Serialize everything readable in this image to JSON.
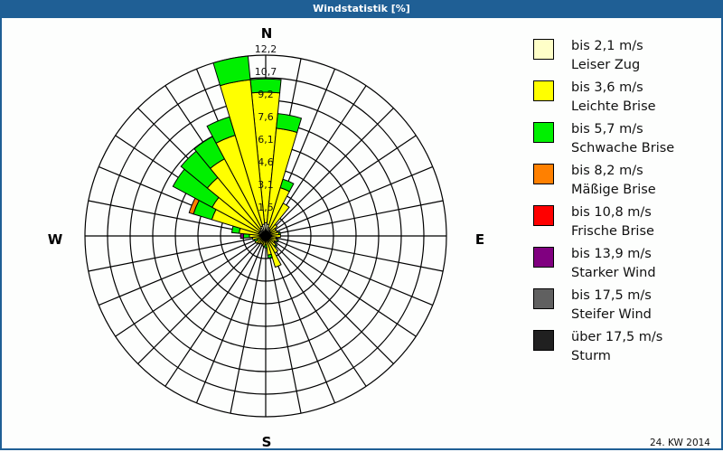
{
  "window": {
    "title": "Windstatistik [%]"
  },
  "compass": {
    "north": "N",
    "east": "E",
    "south": "S",
    "west": "W"
  },
  "footer": {
    "week_label": "24. KW 2014"
  },
  "legend": [
    {
      "speed": "bis 2,1 m/s",
      "name": "Leiser Zug",
      "color": "#ffffc8"
    },
    {
      "speed": "bis 3,6 m/s",
      "name": "Leichte Brise",
      "color": "#ffff00"
    },
    {
      "speed": "bis 5,7 m/s",
      "name": "Schwache Brise",
      "color": "#00f000"
    },
    {
      "speed": "bis 8,2 m/s",
      "name": "Mäßige Brise",
      "color": "#ff8000"
    },
    {
      "speed": "bis 10,8 m/s",
      "name": "Frische Brise",
      "color": "#ff0000"
    },
    {
      "speed": "bis 13,9 m/s",
      "name": "Starker Wind",
      "color": "#800080"
    },
    {
      "speed": "bis 17,5 m/s",
      "name": "Steifer Wind",
      "color": "#606060"
    },
    {
      "speed": "über 17,5 m/s",
      "name": "Sturm",
      "color": "#202020"
    }
  ],
  "chart_data": {
    "type": "wind-rose",
    "title": "Windstatistik [%]",
    "unit": "%",
    "rmax": 12.2,
    "ring_labels": [
      "1,5",
      "3,1",
      "4,6",
      "6,1",
      "7,6",
      "9,2",
      "10,7",
      "12,2"
    ],
    "ring_values": [
      1.5,
      3.1,
      4.6,
      6.1,
      7.6,
      9.2,
      10.7,
      12.2
    ],
    "categories": [
      "bis 2,1 m/s",
      "bis 3,6 m/s",
      "bis 5,7 m/s",
      "bis 8,2 m/s",
      "bis 10,8 m/s",
      "bis 13,9 m/s",
      "bis 17,5 m/s",
      "über 17,5 m/s"
    ],
    "sector_width_deg": 11.25,
    "sectors": [
      {
        "dir": 0,
        "values": [
          0.9,
          8.8,
          0.9,
          0,
          0,
          0,
          0,
          0
        ]
      },
      {
        "dir": 11.25,
        "values": [
          0.8,
          6.5,
          1.0,
          0,
          0,
          0,
          0,
          0
        ]
      },
      {
        "dir": 22.5,
        "values": [
          0.6,
          2.8,
          0.6,
          0,
          0,
          0,
          0,
          0
        ]
      },
      {
        "dir": 33.75,
        "values": [
          0.5,
          2.0,
          0,
          0,
          0,
          0,
          0,
          0
        ]
      },
      {
        "dir": 45,
        "values": [
          0.4,
          0.6,
          0,
          0,
          0,
          0,
          0,
          0
        ]
      },
      {
        "dir": 56.25,
        "values": [
          0.4,
          0.4,
          0,
          0,
          0,
          0,
          0,
          0
        ]
      },
      {
        "dir": 67.5,
        "values": [
          0.3,
          0.5,
          0,
          0,
          0,
          0,
          0,
          0
        ]
      },
      {
        "dir": 78.75,
        "values": [
          0.3,
          0.6,
          0.1,
          0,
          0,
          0,
          0,
          0
        ]
      },
      {
        "dir": 90,
        "values": [
          0.4,
          0.6,
          0,
          0,
          0,
          0,
          0,
          0
        ]
      },
      {
        "dir": 101.25,
        "values": [
          0.3,
          0.4,
          0,
          0,
          0,
          0,
          0,
          0
        ]
      },
      {
        "dir": 112.5,
        "values": [
          0.3,
          0.5,
          0.1,
          0,
          0,
          0,
          0,
          0
        ]
      },
      {
        "dir": 123.75,
        "values": [
          0.3,
          0.4,
          0,
          0,
          0,
          0,
          0,
          0
        ]
      },
      {
        "dir": 135,
        "values": [
          0.3,
          0.6,
          0.1,
          0,
          0,
          0,
          0,
          0
        ]
      },
      {
        "dir": 146.25,
        "values": [
          0.3,
          1.0,
          0,
          0,
          0,
          0,
          0,
          0
        ]
      },
      {
        "dir": 157.5,
        "values": [
          0.4,
          1.8,
          0,
          0,
          0,
          0,
          0,
          0
        ]
      },
      {
        "dir": 168.75,
        "values": [
          0.3,
          1.0,
          0.2,
          0,
          0,
          0,
          0,
          0
        ]
      },
      {
        "dir": 180,
        "values": [
          0.3,
          0.3,
          0.2,
          0,
          0,
          0,
          0,
          0
        ]
      },
      {
        "dir": 191.25,
        "values": [
          0.3,
          0.4,
          0,
          0,
          0,
          0,
          0,
          0
        ]
      },
      {
        "dir": 202.5,
        "values": [
          0.2,
          0.4,
          0,
          0,
          0,
          0,
          0,
          0
        ]
      },
      {
        "dir": 213.75,
        "values": [
          0.3,
          0.3,
          0,
          0,
          0,
          0,
          0,
          0
        ]
      },
      {
        "dir": 225,
        "values": [
          0.3,
          0.4,
          0,
          0,
          0,
          0,
          0,
          0
        ]
      },
      {
        "dir": 236.25,
        "values": [
          0.3,
          0.5,
          0,
          0,
          0,
          0,
          0,
          0
        ]
      },
      {
        "dir": 247.5,
        "values": [
          0.3,
          0.3,
          0.2,
          0,
          0,
          0,
          0,
          0
        ]
      },
      {
        "dir": 258.75,
        "values": [
          0.3,
          0.6,
          0,
          0,
          0,
          0,
          0,
          0
        ]
      },
      {
        "dir": 270,
        "values": [
          0.4,
          0.7,
          0.4,
          0,
          0,
          0.2,
          0,
          0
        ]
      },
      {
        "dir": 281.25,
        "values": [
          0.4,
          1.4,
          0.5,
          0,
          0,
          0,
          0,
          0
        ]
      },
      {
        "dir": 292.5,
        "values": [
          0.5,
          3.3,
          1.3,
          0.3,
          0,
          0,
          0,
          0
        ]
      },
      {
        "dir": 303.75,
        "values": [
          0.5,
          3.6,
          3.0,
          0,
          0,
          0,
          0,
          0
        ]
      },
      {
        "dir": 315,
        "values": [
          0.5,
          4.6,
          2.3,
          0,
          0,
          0,
          0,
          0
        ]
      },
      {
        "dir": 326.25,
        "values": [
          0.6,
          5.3,
          1.7,
          0,
          0,
          0,
          0,
          0
        ]
      },
      {
        "dir": 337.5,
        "values": [
          0.7,
          6.4,
          1.3,
          0,
          0,
          0,
          0,
          0
        ]
      },
      {
        "dir": 348.75,
        "values": [
          0.8,
          9.8,
          1.6,
          0,
          0,
          0,
          0,
          0
        ]
      }
    ],
    "legend_position": "right",
    "grid": true
  }
}
